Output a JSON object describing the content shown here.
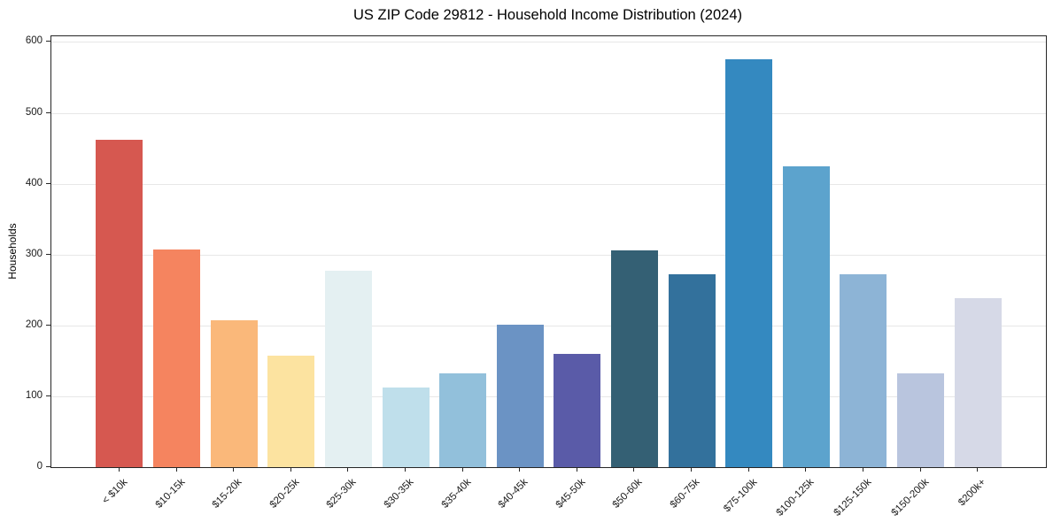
{
  "chart_data": {
    "type": "bar",
    "title": "US ZIP Code 29812 - Household Income Distribution (2024)",
    "xlabel": "",
    "ylabel": "Households",
    "categories": [
      "< $10k",
      "$10-15k",
      "$15-20k",
      "$20-25k",
      "$25-30k",
      "$30-35k",
      "$35-40k",
      "$40-45k",
      "$45-50k",
      "$50-60k",
      "$60-75k",
      "$75-100k",
      "$100-125k",
      "$125-150k",
      "$150-200k",
      "$200k+"
    ],
    "values": [
      462,
      307,
      207,
      157,
      277,
      113,
      133,
      201,
      160,
      306,
      272,
      575,
      424,
      272,
      133,
      238
    ],
    "bar_colors": [
      "#d65850",
      "#f5845f",
      "#fab87a",
      "#fce3a0",
      "#e4f0f2",
      "#bfdfeb",
      "#92c0db",
      "#6b93c4",
      "#5a5ba8",
      "#346074",
      "#33719c",
      "#3489c0",
      "#5ca3cd",
      "#8db4d6",
      "#b9c5de",
      "#d6d9e7"
    ],
    "ylim": [
      0,
      608
    ],
    "yticks": [
      0,
      100,
      200,
      300,
      400,
      500,
      600
    ],
    "grid": "horizontal",
    "legend": "none"
  },
  "style": {
    "grid_color": "#e7e7e7",
    "spine_color": "#262626",
    "text_color": "#1a1a1a",
    "background": "#ffffff"
  }
}
